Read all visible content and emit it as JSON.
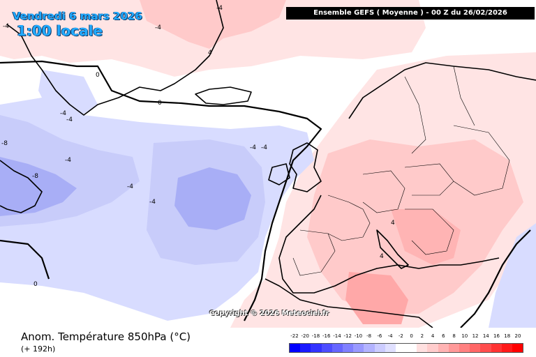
{
  "header": {
    "date": "Vendredi 6 mars 2026",
    "time": "1:00 locale",
    "run": "Ensemble GEFS  ( Moyenne )  -  00 Z du 26/02/2026"
  },
  "copyright": "Copyright © 2026 Meteociel.fr",
  "footer": {
    "title": "Anom. Température 850hPa (°C)",
    "lead": "(+ 192h)"
  },
  "legend": {
    "ticks": [
      "-22",
      "-20",
      "-18",
      "-16",
      "-14",
      "-12",
      "-10",
      "-8",
      "-6",
      "-4",
      "-2",
      "0",
      "2",
      "4",
      "6",
      "8",
      "10",
      "12",
      "14",
      "16",
      "18",
      "20"
    ],
    "colors": [
      "#0000ff",
      "#1a1aff",
      "#3333ff",
      "#4d4dff",
      "#6666ff",
      "#8080ff",
      "#9999ff",
      "#b3b3ff",
      "#ccccff",
      "#e0e0ff",
      "#ffffff",
      "#ffffff",
      "#ffe0e0",
      "#ffcccc",
      "#ffb3b3",
      "#ff9999",
      "#ff8080",
      "#ff6666",
      "#ff4d4d",
      "#ff3333",
      "#ff1a1a",
      "#ff0000"
    ]
  },
  "contour_labels": [
    {
      "text": "-4",
      "pos": "north Greenland"
    },
    {
      "text": "-4",
      "pos": "Greenland east"
    },
    {
      "text": "4",
      "pos": "Greenland north coast"
    },
    {
      "text": "-4",
      "pos": "Greenland northwest"
    },
    {
      "text": "0",
      "pos": "Denmark Strait"
    },
    {
      "text": "0",
      "pos": "south Greenland"
    },
    {
      "text": "-4",
      "pos": "southwest Greenland"
    },
    {
      "text": "-4",
      "pos": "southwest Greenland 2"
    },
    {
      "text": "-8",
      "pos": "Labrador Sea"
    },
    {
      "text": "-4",
      "pos": "Labrador"
    },
    {
      "text": "-8",
      "pos": "Newfoundland"
    },
    {
      "text": "-4",
      "pos": "west Atlantic"
    },
    {
      "text": "-4",
      "pos": "central Atlantic"
    },
    {
      "text": "-4",
      "pos": "north of Ireland"
    },
    {
      "text": "-4",
      "pos": "north of Ireland 2"
    },
    {
      "text": "0",
      "pos": "south Atlantic"
    },
    {
      "text": "4",
      "pos": "central Europe"
    },
    {
      "text": "4",
      "pos": "Mediterranean"
    }
  ],
  "colors": {
    "cold_light": "#d8dcff",
    "cold_mid": "#c8ccfa",
    "cold_deep": "#a8aef6",
    "warm_light": "#ffe4e4",
    "warm_mid": "#ffcaca",
    "warm_deep": "#ffa8a8"
  }
}
